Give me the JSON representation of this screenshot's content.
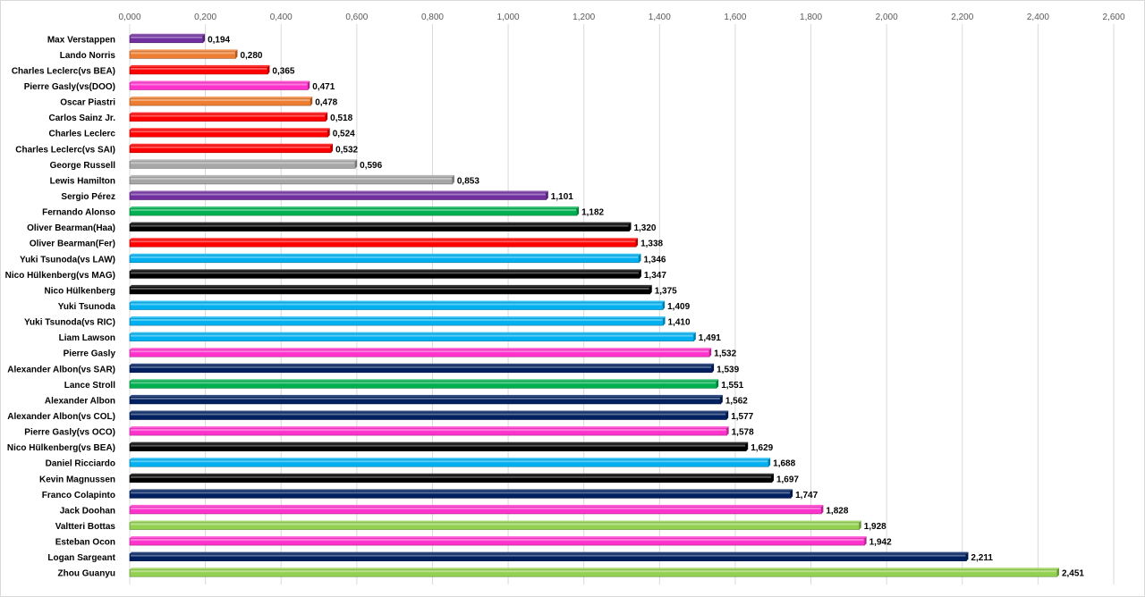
{
  "chart_data": {
    "type": "bar",
    "orientation": "horizontal",
    "title": "",
    "xlabel": "",
    "ylabel": "",
    "xlim": [
      0,
      2.6
    ],
    "ticks": [
      "0,000",
      "0,200",
      "0,400",
      "0,600",
      "0,800",
      "1,000",
      "1,200",
      "1,400",
      "1,600",
      "1,800",
      "2,000",
      "2,200",
      "2,400",
      "2,600"
    ],
    "tick_values": [
      0,
      0.2,
      0.4,
      0.6,
      0.8,
      1.0,
      1.2,
      1.4,
      1.6,
      1.8,
      2.0,
      2.2,
      2.4,
      2.6
    ],
    "grid": true,
    "legend": "none",
    "categories": [
      "Max Verstappen",
      "Lando Norris",
      "Charles Leclerc(vs BEA)",
      "Pierre Gasly(vs(DOO)",
      "Oscar Piastri",
      "Carlos Sainz Jr.",
      "Charles Leclerc",
      "Charles Leclerc(vs SAI)",
      "George Russell",
      "Lewis Hamilton",
      "Sergio Pérez",
      "Fernando Alonso",
      "Oliver Bearman(Haa)",
      "Oliver Bearman(Fer)",
      "Yuki Tsunoda(vs LAW)",
      "Nico Hülkenberg(vs MAG)",
      "Nico Hülkenberg",
      "Yuki Tsunoda",
      "Yuki Tsunoda(vs RIC)",
      "Liam Lawson",
      "Pierre Gasly",
      "Alexander Albon(vs SAR)",
      "Lance Stroll",
      "Alexander Albon",
      "Alexander Albon(vs COL)",
      "Pierre Gasly(vs OCO)",
      "Nico Hülkenberg(vs BEA)",
      "Daniel Ricciardo",
      "Kevin Magnussen",
      "Franco Colapinto",
      "Jack Doohan",
      "Valtteri Bottas",
      "Esteban Ocon",
      "Logan Sargeant",
      "Zhou Guanyu"
    ],
    "values": [
      0.194,
      0.28,
      0.365,
      0.471,
      0.478,
      0.518,
      0.524,
      0.532,
      0.596,
      0.853,
      1.101,
      1.182,
      1.32,
      1.338,
      1.346,
      1.347,
      1.375,
      1.409,
      1.41,
      1.491,
      1.532,
      1.539,
      1.551,
      1.562,
      1.577,
      1.578,
      1.629,
      1.688,
      1.697,
      1.747,
      1.828,
      1.928,
      1.942,
      2.211,
      2.451
    ],
    "labels": [
      "0,194",
      "0,280",
      "0,365",
      "0,471",
      "0,478",
      "0,518",
      "0,524",
      "0,532",
      "0,596",
      "0,853",
      "1,101",
      "1,182",
      "1,320",
      "1,338",
      "1,346",
      "1,347",
      "1,375",
      "1,409",
      "1,410",
      "1,491",
      "1,532",
      "1,539",
      "1,551",
      "1,562",
      "1,577",
      "1,578",
      "1,629",
      "1,688",
      "1,697",
      "1,747",
      "1,828",
      "1,928",
      "1,942",
      "2,211",
      "2,451"
    ],
    "colors": [
      "#7030a0",
      "#ed7d31",
      "#ff0000",
      "#ff33cc",
      "#ed7d31",
      "#ff0000",
      "#ff0000",
      "#ff0000",
      "#a6a6a6",
      "#a6a6a6",
      "#7030a0",
      "#00b050",
      "#000000",
      "#ff0000",
      "#00b0f0",
      "#000000",
      "#000000",
      "#00b0f0",
      "#00b0f0",
      "#00b0f0",
      "#ff33cc",
      "#002060",
      "#00b050",
      "#002060",
      "#002060",
      "#ff33cc",
      "#000000",
      "#00b0f0",
      "#000000",
      "#002060",
      "#ff33cc",
      "#92d050",
      "#ff33cc",
      "#002060",
      "#92d050"
    ]
  }
}
